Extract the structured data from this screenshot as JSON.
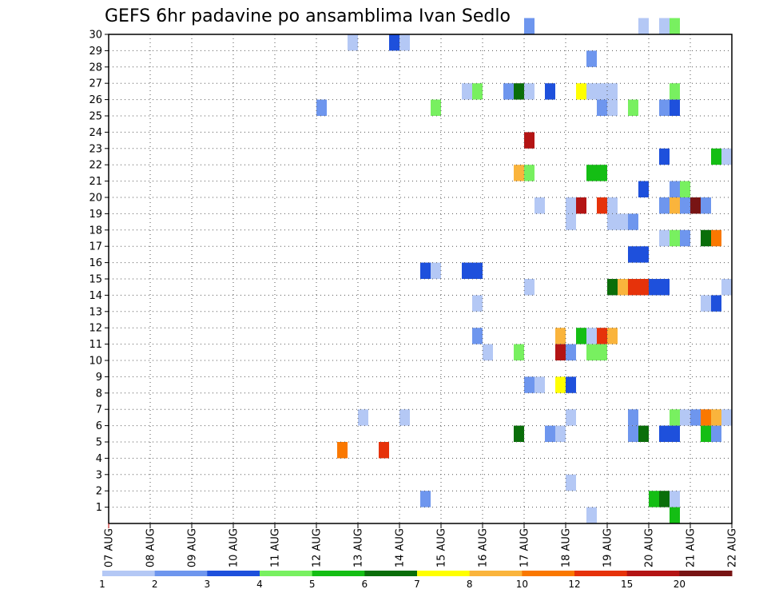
{
  "chart_data": {
    "type": "heatmap",
    "title": "GEFS 6hr padavine po ansamblima Ivan Sedlo",
    "x_tick_labels": [
      "07 AUG",
      "08 AUG",
      "09 AUG",
      "10 AUG",
      "11 AUG",
      "12 AUG",
      "13 AUG",
      "14 AUG",
      "15 AUG",
      "16 AUG",
      "17 AUG",
      "18 AUG",
      "19 AUG",
      "20 AUG",
      "21 AUG",
      "22 AUG"
    ],
    "y_tick_labels": [
      "1",
      "2",
      "3",
      "4",
      "5",
      "6",
      "7",
      "8",
      "9",
      "10",
      "11",
      "12",
      "13",
      "14",
      "15",
      "16",
      "17",
      "18",
      "19",
      "20",
      "21",
      "22",
      "23",
      "24",
      "25",
      "26",
      "27",
      "28",
      "29",
      "30"
    ],
    "time_steps_per_day": 4,
    "xlim_steps": [
      0,
      60
    ],
    "ylim": [
      0,
      30
    ],
    "grid": true,
    "legend": "bottom-colorbar",
    "colorbar": {
      "labels": [
        "1",
        "2",
        "3",
        "4",
        "5",
        "6",
        "7",
        "8",
        "10",
        "12",
        "15",
        "20"
      ],
      "colors": [
        "#b4c8f5",
        "#6e96ee",
        "#1e50dc",
        "#78f060",
        "#14be14",
        "#0a6e0a",
        "#ffff00",
        "#fab43c",
        "#fa7800",
        "#e6320a",
        "#b41414",
        "#781414"
      ]
    },
    "cells": [
      {
        "member": 30,
        "step": 40,
        "cls": 1
      },
      {
        "member": 30,
        "step": 51,
        "cls": 0
      },
      {
        "member": 30,
        "step": 53,
        "cls": 0
      },
      {
        "member": 30,
        "step": 54,
        "cls": 3
      },
      {
        "member": 29,
        "step": 23,
        "cls": 0
      },
      {
        "member": 29,
        "step": 27,
        "cls": 2
      },
      {
        "member": 29,
        "step": 28,
        "cls": 0
      },
      {
        "member": 28,
        "step": 46,
        "cls": 1
      },
      {
        "member": 26,
        "step": 34,
        "cls": 0
      },
      {
        "member": 26,
        "step": 35,
        "cls": 3
      },
      {
        "member": 26,
        "step": 38,
        "cls": 1
      },
      {
        "member": 26,
        "step": 39,
        "cls": 5
      },
      {
        "member": 26,
        "step": 40,
        "cls": 0
      },
      {
        "member": 26,
        "step": 42,
        "cls": 2
      },
      {
        "member": 26,
        "step": 45,
        "cls": 6
      },
      {
        "member": 26,
        "step": 46,
        "cls": 0
      },
      {
        "member": 26,
        "step": 47,
        "cls": 0
      },
      {
        "member": 26,
        "step": 48,
        "cls": 0
      },
      {
        "member": 26,
        "step": 54,
        "cls": 3
      },
      {
        "member": 25,
        "step": 20,
        "cls": 1
      },
      {
        "member": 25,
        "step": 31,
        "cls": 3
      },
      {
        "member": 25,
        "step": 47,
        "cls": 1
      },
      {
        "member": 25,
        "step": 48,
        "cls": 0
      },
      {
        "member": 25,
        "step": 50,
        "cls": 3
      },
      {
        "member": 25,
        "step": 53,
        "cls": 1
      },
      {
        "member": 25,
        "step": 54,
        "cls": 2
      },
      {
        "member": 23,
        "step": 40,
        "cls": 10
      },
      {
        "member": 22,
        "step": 53,
        "cls": 2
      },
      {
        "member": 22,
        "step": 58,
        "cls": 4
      },
      {
        "member": 22,
        "step": 59,
        "cls": 0
      },
      {
        "member": 21,
        "step": 39,
        "cls": 7
      },
      {
        "member": 21,
        "step": 40,
        "cls": 3
      },
      {
        "member": 21,
        "step": 46,
        "cls": 4
      },
      {
        "member": 21,
        "step": 47,
        "cls": 4
      },
      {
        "member": 20,
        "step": 51,
        "cls": 2
      },
      {
        "member": 20,
        "step": 54,
        "cls": 1
      },
      {
        "member": 20,
        "step": 55,
        "cls": 3
      },
      {
        "member": 19,
        "step": 45,
        "cls": 10
      },
      {
        "member": 19,
        "step": 47,
        "cls": 9
      },
      {
        "member": 19,
        "step": 48,
        "cls": 0
      },
      {
        "member": 19,
        "step": 41,
        "cls": 0
      },
      {
        "member": 19,
        "step": 44,
        "cls": 0
      },
      {
        "member": 19,
        "step": 53,
        "cls": 1
      },
      {
        "member": 19,
        "step": 54,
        "cls": 7
      },
      {
        "member": 19,
        "step": 55,
        "cls": 1
      },
      {
        "member": 19,
        "step": 56,
        "cls": 11
      },
      {
        "member": 19,
        "step": 57,
        "cls": 1
      },
      {
        "member": 18,
        "step": 44,
        "cls": 0
      },
      {
        "member": 18,
        "step": 48,
        "cls": 0
      },
      {
        "member": 18,
        "step": 49,
        "cls": 0
      },
      {
        "member": 18,
        "step": 50,
        "cls": 1
      },
      {
        "member": 17,
        "step": 53,
        "cls": 0
      },
      {
        "member": 17,
        "step": 54,
        "cls": 3
      },
      {
        "member": 17,
        "step": 55,
        "cls": 1
      },
      {
        "member": 17,
        "step": 57,
        "cls": 5
      },
      {
        "member": 17,
        "step": 58,
        "cls": 8
      },
      {
        "member": 16,
        "step": 50,
        "cls": 2
      },
      {
        "member": 16,
        "step": 51,
        "cls": 2
      },
      {
        "member": 15,
        "step": 30,
        "cls": 2
      },
      {
        "member": 15,
        "step": 31,
        "cls": 0
      },
      {
        "member": 15,
        "step": 34,
        "cls": 2
      },
      {
        "member": 15,
        "step": 35,
        "cls": 2
      },
      {
        "member": 14,
        "step": 40,
        "cls": 0
      },
      {
        "member": 14,
        "step": 48,
        "cls": 5
      },
      {
        "member": 14,
        "step": 49,
        "cls": 7
      },
      {
        "member": 14,
        "step": 50,
        "cls": 9
      },
      {
        "member": 14,
        "step": 51,
        "cls": 9
      },
      {
        "member": 14,
        "step": 52,
        "cls": 2
      },
      {
        "member": 14,
        "step": 53,
        "cls": 2
      },
      {
        "member": 14,
        "step": 59,
        "cls": 0
      },
      {
        "member": 13,
        "step": 35,
        "cls": 0
      },
      {
        "member": 13,
        "step": 57,
        "cls": 0
      },
      {
        "member": 13,
        "step": 58,
        "cls": 2
      },
      {
        "member": 11,
        "step": 35,
        "cls": 1
      },
      {
        "member": 11,
        "step": 43,
        "cls": 7
      },
      {
        "member": 11,
        "step": 45,
        "cls": 4
      },
      {
        "member": 11,
        "step": 46,
        "cls": 0
      },
      {
        "member": 11,
        "step": 47,
        "cls": 9
      },
      {
        "member": 11,
        "step": 48,
        "cls": 7
      },
      {
        "member": 10,
        "step": 36,
        "cls": 0
      },
      {
        "member": 10,
        "step": 39,
        "cls": 3
      },
      {
        "member": 10,
        "step": 43,
        "cls": 10
      },
      {
        "member": 10,
        "step": 44,
        "cls": 1
      },
      {
        "member": 10,
        "step": 46,
        "cls": 3
      },
      {
        "member": 10,
        "step": 47,
        "cls": 3
      },
      {
        "member": 8,
        "step": 40,
        "cls": 1
      },
      {
        "member": 8,
        "step": 41,
        "cls": 0
      },
      {
        "member": 8,
        "step": 43,
        "cls": 6
      },
      {
        "member": 8,
        "step": 44,
        "cls": 2
      },
      {
        "member": 6,
        "step": 24,
        "cls": 0
      },
      {
        "member": 6,
        "step": 28,
        "cls": 0
      },
      {
        "member": 6,
        "step": 44,
        "cls": 0
      },
      {
        "member": 6,
        "step": 50,
        "cls": 1
      },
      {
        "member": 6,
        "step": 54,
        "cls": 3
      },
      {
        "member": 6,
        "step": 55,
        "cls": 0
      },
      {
        "member": 6,
        "step": 56,
        "cls": 1
      },
      {
        "member": 6,
        "step": 57,
        "cls": 8
      },
      {
        "member": 6,
        "step": 58,
        "cls": 7
      },
      {
        "member": 6,
        "step": 59,
        "cls": 0
      },
      {
        "member": 5,
        "step": 39,
        "cls": 5
      },
      {
        "member": 5,
        "step": 42,
        "cls": 1
      },
      {
        "member": 5,
        "step": 43,
        "cls": 0
      },
      {
        "member": 5,
        "step": 50,
        "cls": 1
      },
      {
        "member": 5,
        "step": 51,
        "cls": 5
      },
      {
        "member": 5,
        "step": 53,
        "cls": 2
      },
      {
        "member": 5,
        "step": 54,
        "cls": 2
      },
      {
        "member": 5,
        "step": 57,
        "cls": 4
      },
      {
        "member": 5,
        "step": 58,
        "cls": 1
      },
      {
        "member": 4,
        "step": 22,
        "cls": 8
      },
      {
        "member": 4,
        "step": 26,
        "cls": 9
      },
      {
        "member": 2,
        "step": 44,
        "cls": 0
      },
      {
        "member": 1,
        "step": 30,
        "cls": 1
      },
      {
        "member": 1,
        "step": 52,
        "cls": 4
      },
      {
        "member": 1,
        "step": 53,
        "cls": 5
      },
      {
        "member": 1,
        "step": 54,
        "cls": 0
      },
      {
        "member": 0,
        "step": 46,
        "cls": 0
      },
      {
        "member": 0,
        "step": 54,
        "cls": 4
      }
    ]
  }
}
